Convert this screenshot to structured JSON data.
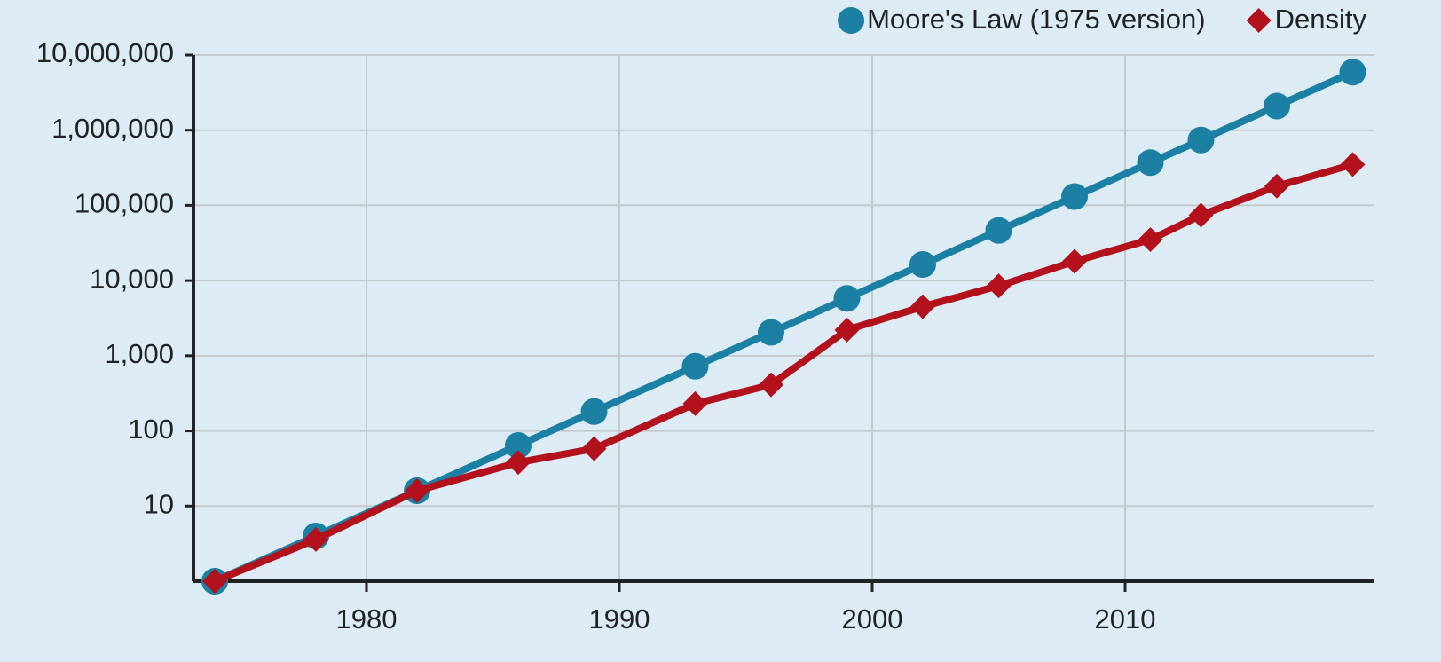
{
  "chart_data": {
    "type": "line",
    "x": [
      1974,
      1978,
      1982,
      1986,
      1989,
      1993,
      1996,
      1999,
      2002,
      2005,
      2008,
      2011,
      2013,
      2016,
      2019
    ],
    "series": [
      {
        "name": "Moore's Law (1975 version)",
        "color": "#1b80a3",
        "marker": "circle",
        "values": [
          1,
          4,
          16,
          64,
          181,
          724,
          2048,
          5793,
          16384,
          46341,
          131072,
          370728,
          741455,
          2097152,
          5931642
        ]
      },
      {
        "name": "Density",
        "color": "#b3121c",
        "marker": "diamond",
        "values": [
          1,
          3.6,
          16,
          38,
          58,
          230,
          410,
          2200,
          4500,
          8500,
          18000,
          35000,
          74000,
          180000,
          350000
        ]
      }
    ],
    "xlim": [
      1973,
      2020
    ],
    "xticks": [
      1980,
      1990,
      2000,
      2010
    ],
    "ylim": [
      1,
      10000000
    ],
    "yticks": [
      10,
      100,
      {
        "value": 1000,
        "label": "1,000"
      },
      {
        "value": 10000,
        "label": "10,000"
      },
      {
        "value": 100000,
        "label": "100,000"
      },
      {
        "value": 1000000,
        "label": "1,000,000"
      },
      {
        "value": 10000000,
        "label": "10,000,000"
      }
    ],
    "log_y": true,
    "grid": true,
    "legend": "top-right"
  }
}
